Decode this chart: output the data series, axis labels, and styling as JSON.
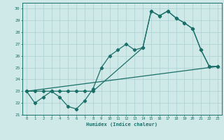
{
  "title": "",
  "xlabel": "Humidex (Indice chaleur)",
  "xlim": [
    -0.5,
    23.5
  ],
  "ylim": [
    21,
    30.5
  ],
  "xticks": [
    0,
    1,
    2,
    3,
    4,
    5,
    6,
    7,
    8,
    9,
    10,
    11,
    12,
    13,
    14,
    15,
    16,
    17,
    18,
    19,
    20,
    21,
    22,
    23
  ],
  "yticks": [
    21,
    22,
    23,
    24,
    25,
    26,
    27,
    28,
    29,
    30
  ],
  "bg_color": "#cfe8e8",
  "line_color": "#1a7068",
  "grid_color": "#b0d4d4",
  "line1_x": [
    0,
    1,
    2,
    3,
    4,
    5,
    6,
    7,
    8,
    9,
    10,
    11,
    12,
    13,
    14,
    15,
    16,
    17,
    18,
    19,
    20,
    21,
    22,
    23
  ],
  "line1_y": [
    23.0,
    22.0,
    22.5,
    23.0,
    22.5,
    21.7,
    21.5,
    22.2,
    23.2,
    25.0,
    26.0,
    26.5,
    27.0,
    26.5,
    26.7,
    29.8,
    29.4,
    29.8,
    29.2,
    28.8,
    28.3,
    26.5,
    25.1,
    25.1
  ],
  "line2_x": [
    0,
    1,
    2,
    3,
    4,
    5,
    6,
    7,
    8,
    14,
    15,
    16,
    17,
    18,
    19,
    20,
    21,
    22,
    23
  ],
  "line2_y": [
    23.0,
    23.0,
    23.0,
    23.0,
    23.0,
    23.0,
    23.0,
    23.0,
    23.0,
    26.7,
    29.8,
    29.4,
    29.8,
    29.2,
    28.8,
    28.3,
    26.5,
    25.1,
    25.1
  ],
  "line3_x": [
    0,
    23
  ],
  "line3_y": [
    23.0,
    25.1
  ]
}
